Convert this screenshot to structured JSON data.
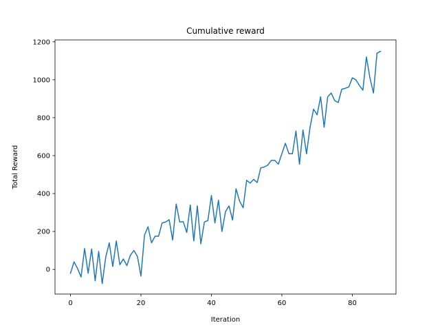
{
  "chart_data": {
    "type": "line",
    "title": "Cumulative reward",
    "xlabel": "Iteration",
    "ylabel": "Total Reward",
    "xlim": [
      -4.4,
      92.4
    ],
    "ylim": [
      -130,
      1210
    ],
    "xticks": [
      0,
      20,
      40,
      60,
      80
    ],
    "yticks": [
      0,
      200,
      400,
      600,
      800,
      1000,
      1200
    ],
    "grid": false,
    "line_color": "#1f77b4",
    "series": [
      {
        "x": [
          0,
          1,
          2,
          3,
          4,
          5,
          6,
          7,
          8,
          9,
          10,
          11,
          12,
          13,
          14,
          15,
          16,
          17,
          18,
          19,
          20,
          21,
          22,
          23,
          24,
          25,
          26,
          27,
          28,
          29,
          30,
          31,
          32,
          33,
          34,
          35,
          36,
          37,
          38,
          39,
          40,
          41,
          42,
          43,
          44,
          45,
          46,
          47,
          48,
          49,
          50,
          51,
          52,
          53,
          54,
          55,
          56,
          57,
          58,
          59,
          60,
          61,
          62,
          63,
          64,
          65,
          66,
          67,
          68,
          69,
          70,
          71,
          72,
          73,
          74,
          75,
          76,
          77,
          78,
          79,
          80,
          81,
          82,
          83,
          84,
          85,
          86,
          87,
          88
        ],
        "values": [
          -20,
          40,
          5,
          -40,
          110,
          -20,
          108,
          -60,
          95,
          -75,
          65,
          140,
          15,
          150,
          25,
          55,
          20,
          75,
          100,
          68,
          -35,
          180,
          225,
          140,
          175,
          175,
          245,
          250,
          262,
          155,
          345,
          250,
          252,
          195,
          340,
          150,
          335,
          135,
          250,
          258,
          390,
          245,
          365,
          200,
          305,
          335,
          260,
          425,
          360,
          325,
          470,
          455,
          475,
          458,
          535,
          540,
          550,
          575,
          575,
          555,
          610,
          665,
          610,
          610,
          730,
          555,
          735,
          610,
          750,
          845,
          815,
          910,
          750,
          910,
          930,
          890,
          880,
          950,
          955,
          962,
          1010,
          1000,
          970,
          945,
          1120,
          1010,
          930,
          1140,
          1150
        ]
      }
    ]
  }
}
